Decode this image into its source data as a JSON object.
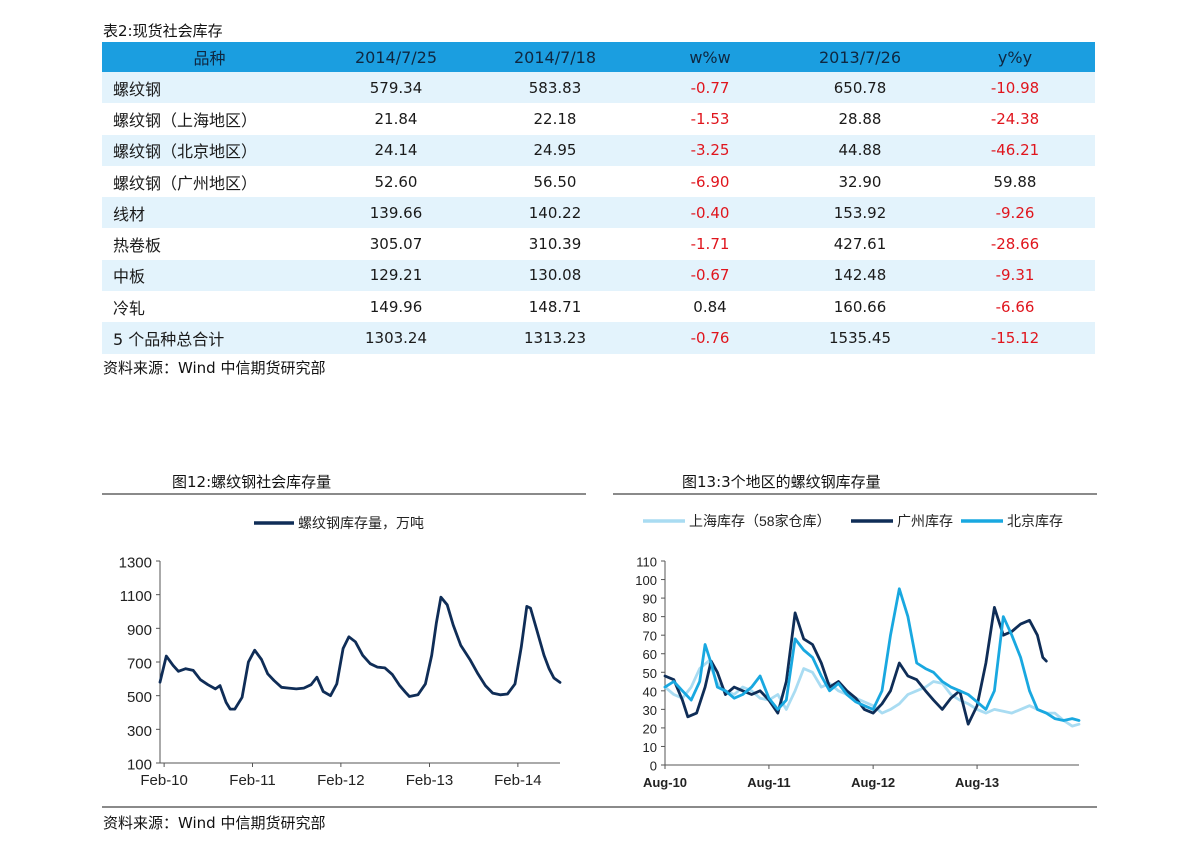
{
  "table": {
    "title": "表2:现货社会库存",
    "headers": [
      "品种",
      "2014/7/25",
      "2014/7/18",
      "w%w",
      "2013/7/26",
      "y%y"
    ],
    "rows": [
      [
        "螺纹钢",
        "579.34",
        "583.83",
        "-0.77",
        "650.78",
        "-10.98"
      ],
      [
        "螺纹钢（上海地区）",
        "21.84",
        "22.18",
        "-1.53",
        "28.88",
        "-24.38"
      ],
      [
        "螺纹钢（北京地区）",
        "24.14",
        "24.95",
        "-3.25",
        "44.88",
        "-46.21"
      ],
      [
        "螺纹钢（广州地区）",
        "52.60",
        "56.50",
        "-6.90",
        "32.90",
        "59.88"
      ],
      [
        "线材",
        "139.66",
        "140.22",
        "-0.40",
        "153.92",
        "-9.26"
      ],
      [
        "热卷板",
        "305.07",
        "310.39",
        "-1.71",
        "427.61",
        "-28.66"
      ],
      [
        "中板",
        "129.21",
        "130.08",
        "-0.67",
        "142.48",
        "-9.31"
      ],
      [
        "冷轧",
        "149.96",
        "148.71",
        "0.84",
        "160.66",
        "-6.66"
      ],
      [
        "5 个品种总合计",
        "1303.24",
        "1313.23",
        "-0.76",
        "1535.45",
        "-15.12"
      ]
    ],
    "source": "资料来源：Wind 中信期货研究部",
    "header_color": "#1b9ee0",
    "stripe_color": "#e3f3fc",
    "negative_color": "#e0151d"
  },
  "bottom_source": "资料来源：Wind 中信期货研究部",
  "chart_data": [
    {
      "type": "line",
      "title": "图12:螺纹钢社会库存量",
      "ylim": [
        100,
        1300
      ],
      "yticks": [
        100,
        300,
        500,
        700,
        900,
        1100,
        1300
      ],
      "xticks": [
        "Feb-10",
        "Feb-11",
        "Feb-12",
        "Feb-13",
        "Feb-14"
      ],
      "xlim": [
        "2010-01-15",
        "2014-07-25"
      ],
      "grid": false,
      "legend_position": "top",
      "series": [
        {
          "name": "螺纹钢库存量，万吨",
          "color": "#0f2d57",
          "points": [
            [
              "2010-01-15",
              580
            ],
            [
              "2010-02-10",
              735
            ],
            [
              "2010-03-10",
              680
            ],
            [
              "2010-04-01",
              645
            ],
            [
              "2010-05-01",
              660
            ],
            [
              "2010-06-01",
              650
            ],
            [
              "2010-07-01",
              595
            ],
            [
              "2010-08-01",
              565
            ],
            [
              "2010-09-01",
              540
            ],
            [
              "2010-09-20",
              560
            ],
            [
              "2010-10-15",
              460
            ],
            [
              "2010-11-01",
              420
            ],
            [
              "2010-11-20",
              420
            ],
            [
              "2010-12-20",
              490
            ],
            [
              "2011-01-15",
              700
            ],
            [
              "2011-02-10",
              770
            ],
            [
              "2011-03-10",
              715
            ],
            [
              "2011-04-05",
              630
            ],
            [
              "2011-05-01",
              590
            ],
            [
              "2011-06-01",
              550
            ],
            [
              "2011-07-01",
              545
            ],
            [
              "2011-08-01",
              540
            ],
            [
              "2011-09-01",
              545
            ],
            [
              "2011-10-01",
              565
            ],
            [
              "2011-10-25",
              610
            ],
            [
              "2011-11-20",
              525
            ],
            [
              "2011-12-20",
              500
            ],
            [
              "2012-01-15",
              570
            ],
            [
              "2012-02-10",
              780
            ],
            [
              "2012-03-05",
              850
            ],
            [
              "2012-04-01",
              820
            ],
            [
              "2012-05-01",
              740
            ],
            [
              "2012-06-01",
              690
            ],
            [
              "2012-07-01",
              670
            ],
            [
              "2012-08-01",
              665
            ],
            [
              "2012-09-01",
              625
            ],
            [
              "2012-10-01",
              560
            ],
            [
              "2012-10-25",
              520
            ],
            [
              "2012-11-10",
              495
            ],
            [
              "2012-12-15",
              505
            ],
            [
              "2013-01-15",
              570
            ],
            [
              "2013-02-10",
              740
            ],
            [
              "2013-03-01",
              930
            ],
            [
              "2013-03-20",
              1085
            ],
            [
              "2013-04-15",
              1040
            ],
            [
              "2013-05-10",
              920
            ],
            [
              "2013-06-10",
              800
            ],
            [
              "2013-07-20",
              710
            ],
            [
              "2013-08-20",
              630
            ],
            [
              "2013-09-20",
              560
            ],
            [
              "2013-10-20",
              515
            ],
            [
              "2013-11-20",
              505
            ],
            [
              "2013-12-20",
              510
            ],
            [
              "2014-01-20",
              570
            ],
            [
              "2014-02-15",
              790
            ],
            [
              "2014-03-10",
              1030
            ],
            [
              "2014-03-25",
              1020
            ],
            [
              "2014-04-20",
              890
            ],
            [
              "2014-05-20",
              740
            ],
            [
              "2014-06-10",
              660
            ],
            [
              "2014-06-30",
              605
            ],
            [
              "2014-07-25",
              579
            ]
          ]
        }
      ]
    },
    {
      "type": "line",
      "title": "图13:3个地区的螺纹钢库存量",
      "ylim": [
        0,
        110
      ],
      "yticks": [
        0,
        10,
        20,
        30,
        40,
        50,
        60,
        70,
        80,
        90,
        100,
        110
      ],
      "xticks": [
        "Aug-10",
        "Aug-11",
        "Aug-12",
        "Aug-13"
      ],
      "xlim": [
        "2010-08-01",
        "2014-07-25"
      ],
      "grid": false,
      "legend_position": "top",
      "series": [
        {
          "name": "上海库存（58家仓库）",
          "color": "#a9dcf2",
          "points": [
            [
              "2010-08-01",
              42
            ],
            [
              "2010-09-01",
              38
            ],
            [
              "2010-10-01",
              36
            ],
            [
              "2010-11-01",
              42
            ],
            [
              "2010-12-01",
              52
            ],
            [
              "2011-01-01",
              56
            ],
            [
              "2011-02-01",
              44
            ],
            [
              "2011-03-01",
              40
            ],
            [
              "2011-04-01",
              38
            ],
            [
              "2011-05-01",
              42
            ],
            [
              "2011-06-01",
              40
            ],
            [
              "2011-07-01",
              36
            ],
            [
              "2011-08-01",
              35
            ],
            [
              "2011-09-01",
              38
            ],
            [
              "2011-10-01",
              30
            ],
            [
              "2011-11-01",
              40
            ],
            [
              "2011-12-01",
              52
            ],
            [
              "2012-01-01",
              50
            ],
            [
              "2012-02-01",
              42
            ],
            [
              "2012-03-01",
              44
            ],
            [
              "2012-04-01",
              40
            ],
            [
              "2012-05-01",
              38
            ],
            [
              "2012-06-01",
              36
            ],
            [
              "2012-07-01",
              34
            ],
            [
              "2012-08-01",
              32
            ],
            [
              "2012-09-01",
              28
            ],
            [
              "2012-10-01",
              30
            ],
            [
              "2012-11-01",
              33
            ],
            [
              "2012-12-01",
              38
            ],
            [
              "2013-01-01",
              40
            ],
            [
              "2013-02-01",
              42
            ],
            [
              "2013-03-01",
              45
            ],
            [
              "2013-04-01",
              44
            ],
            [
              "2013-05-01",
              38
            ],
            [
              "2013-06-01",
              35
            ],
            [
              "2013-07-01",
              33
            ],
            [
              "2013-08-01",
              30
            ],
            [
              "2013-09-01",
              28
            ],
            [
              "2013-10-01",
              30
            ],
            [
              "2013-11-01",
              29
            ],
            [
              "2013-12-01",
              28
            ],
            [
              "2014-01-01",
              30
            ],
            [
              "2014-02-01",
              32
            ],
            [
              "2014-03-01",
              30
            ],
            [
              "2014-04-01",
              28
            ],
            [
              "2014-05-01",
              28
            ],
            [
              "2014-06-01",
              24
            ],
            [
              "2014-07-01",
              21
            ],
            [
              "2014-07-25",
              22
            ]
          ]
        },
        {
          "name": "广州库存",
          "color": "#0f2d57",
          "points": [
            [
              "2010-08-01",
              48
            ],
            [
              "2010-09-01",
              46
            ],
            [
              "2010-10-01",
              35
            ],
            [
              "2010-10-20",
              26
            ],
            [
              "2010-11-20",
              28
            ],
            [
              "2010-12-20",
              42
            ],
            [
              "2011-01-10",
              56
            ],
            [
              "2011-02-01",
              50
            ],
            [
              "2011-03-01",
              38
            ],
            [
              "2011-04-01",
              42
            ],
            [
              "2011-05-01",
              40
            ],
            [
              "2011-06-01",
              38
            ],
            [
              "2011-07-01",
              40
            ],
            [
              "2011-08-01",
              35
            ],
            [
              "2011-09-01",
              28
            ],
            [
              "2011-10-01",
              45
            ],
            [
              "2011-11-01",
              82
            ],
            [
              "2011-12-01",
              68
            ],
            [
              "2012-01-01",
              65
            ],
            [
              "2012-02-01",
              55
            ],
            [
              "2012-03-01",
              42
            ],
            [
              "2012-04-01",
              45
            ],
            [
              "2012-05-01",
              40
            ],
            [
              "2012-06-01",
              36
            ],
            [
              "2012-07-01",
              30
            ],
            [
              "2012-08-01",
              28
            ],
            [
              "2012-09-01",
              33
            ],
            [
              "2012-10-01",
              40
            ],
            [
              "2012-11-01",
              55
            ],
            [
              "2012-12-01",
              48
            ],
            [
              "2013-01-01",
              46
            ],
            [
              "2013-02-01",
              40
            ],
            [
              "2013-03-01",
              35
            ],
            [
              "2013-04-01",
              30
            ],
            [
              "2013-05-01",
              36
            ],
            [
              "2013-06-01",
              40
            ],
            [
              "2013-07-01",
              22
            ],
            [
              "2013-08-01",
              32
            ],
            [
              "2013-09-01",
              55
            ],
            [
              "2013-10-01",
              85
            ],
            [
              "2013-11-01",
              70
            ],
            [
              "2013-12-01",
              72
            ],
            [
              "2014-01-01",
              76
            ],
            [
              "2014-02-01",
              78
            ],
            [
              "2014-03-01",
              70
            ],
            [
              "2014-03-20",
              58
            ],
            [
              "2014-04-01",
              56
            ]
          ]
        },
        {
          "name": "北京库存",
          "color": "#19a8e0",
          "points": [
            [
              "2010-08-01",
              42
            ],
            [
              "2010-09-01",
              45
            ],
            [
              "2010-10-01",
              40
            ],
            [
              "2010-11-01",
              35
            ],
            [
              "2010-12-01",
              45
            ],
            [
              "2010-12-20",
              65
            ],
            [
              "2011-01-10",
              55
            ],
            [
              "2011-02-01",
              42
            ],
            [
              "2011-03-01",
              40
            ],
            [
              "2011-04-01",
              36
            ],
            [
              "2011-05-01",
              38
            ],
            [
              "2011-06-01",
              42
            ],
            [
              "2011-07-01",
              48
            ],
            [
              "2011-08-01",
              36
            ],
            [
              "2011-09-01",
              30
            ],
            [
              "2011-10-01",
              35
            ],
            [
              "2011-11-01",
              68
            ],
            [
              "2011-12-01",
              62
            ],
            [
              "2012-01-01",
              58
            ],
            [
              "2012-02-01",
              48
            ],
            [
              "2012-03-01",
              40
            ],
            [
              "2012-04-01",
              44
            ],
            [
              "2012-05-01",
              38
            ],
            [
              "2012-06-01",
              34
            ],
            [
              "2012-07-01",
              32
            ],
            [
              "2012-08-01",
              30
            ],
            [
              "2012-09-01",
              40
            ],
            [
              "2012-10-01",
              70
            ],
            [
              "2012-11-01",
              95
            ],
            [
              "2012-12-01",
              80
            ],
            [
              "2013-01-01",
              55
            ],
            [
              "2013-02-01",
              52
            ],
            [
              "2013-03-01",
              50
            ],
            [
              "2013-04-01",
              45
            ],
            [
              "2013-05-01",
              42
            ],
            [
              "2013-06-01",
              40
            ],
            [
              "2013-07-01",
              38
            ],
            [
              "2013-08-01",
              34
            ],
            [
              "2013-09-01",
              30
            ],
            [
              "2013-10-01",
              40
            ],
            [
              "2013-11-01",
              80
            ],
            [
              "2013-12-01",
              70
            ],
            [
              "2014-01-01",
              58
            ],
            [
              "2014-02-01",
              40
            ],
            [
              "2014-03-01",
              30
            ],
            [
              "2014-04-01",
              28
            ],
            [
              "2014-05-01",
              25
            ],
            [
              "2014-06-01",
              24
            ],
            [
              "2014-07-01",
              25
            ],
            [
              "2014-07-25",
              24
            ]
          ]
        }
      ]
    }
  ]
}
